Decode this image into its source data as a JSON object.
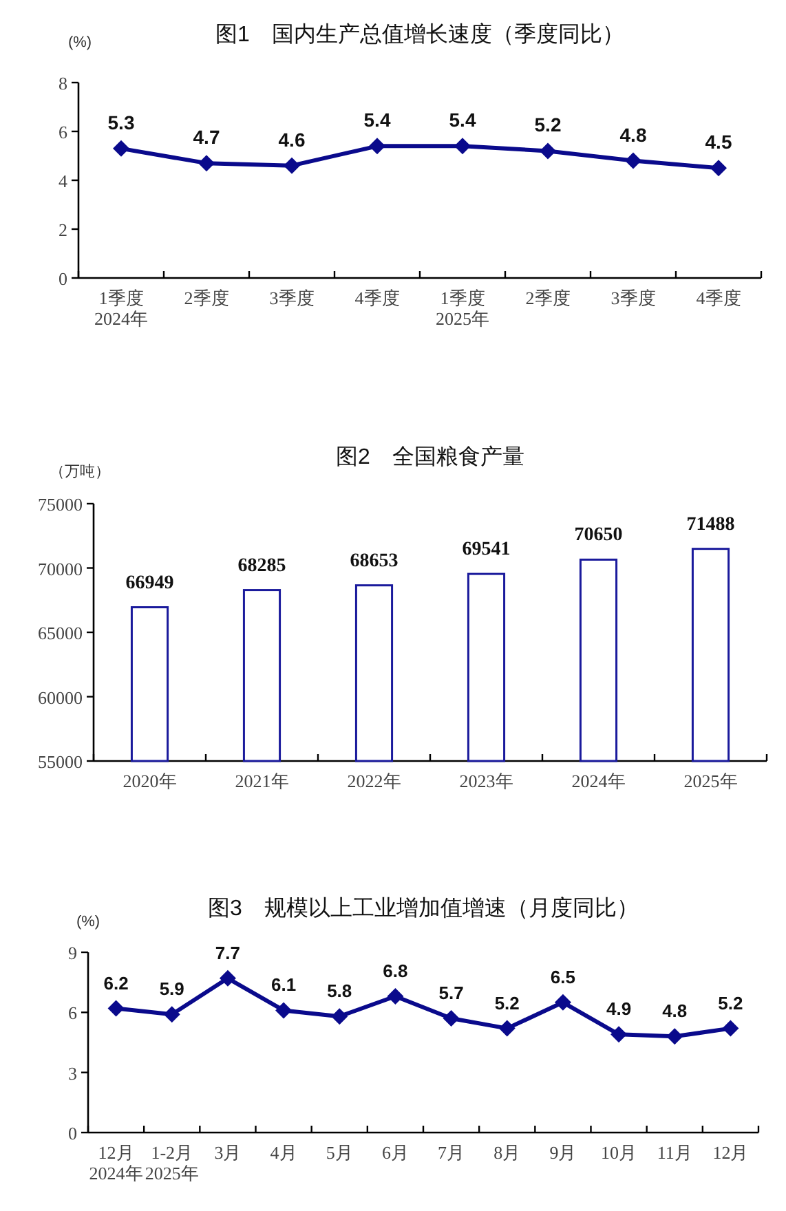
{
  "chart_data": [
    {
      "type": "line",
      "title": "图1　国内生产总值增长速度（季度同比）",
      "ylabel": "(%)",
      "categories": [
        "1季度\n2024年",
        "2季度",
        "3季度",
        "4季度",
        "1季度\n2025年",
        "2季度",
        "3季度",
        "4季度"
      ],
      "series": [
        {
          "color": "#0a0a8c",
          "values": [
            5.3,
            4.7,
            4.6,
            5.4,
            5.4,
            5.2,
            4.8,
            4.5
          ]
        }
      ],
      "ylim": [
        0,
        8
      ],
      "yticks": [
        0,
        2,
        4,
        6,
        8
      ],
      "marker": "diamond",
      "line_style": "solid",
      "data_labels": true
    },
    {
      "type": "bar",
      "title": "图2　全国粮食产量",
      "ylabel": "（万吨）",
      "categories": [
        "2020年",
        "2021年",
        "2022年",
        "2023年",
        "2024年",
        "2025年"
      ],
      "series": [
        {
          "color": "#1a1a9c",
          "values": [
            66949,
            68285,
            68653,
            69541,
            70650,
            71488
          ]
        }
      ],
      "ylim": [
        55000,
        75000
      ],
      "yticks": [
        55000,
        60000,
        65000,
        70000,
        75000
      ],
      "data_labels": true
    },
    {
      "type": "line",
      "title": "图3　规模以上工业增加值增速（月度同比）",
      "ylabel": "(%)",
      "categories": [
        "12月\n2024年",
        "1-2月\n2025年",
        "3月",
        "4月",
        "5月",
        "6月",
        "7月",
        "8月",
        "9月",
        "10月",
        "11月",
        "12月"
      ],
      "series": [
        {
          "color": "#0a0a8c",
          "values": [
            6.2,
            5.9,
            7.7,
            6.1,
            5.8,
            6.8,
            5.7,
            5.2,
            6.5,
            4.9,
            4.8,
            5.2
          ]
        }
      ],
      "ylim": [
        0,
        9
      ],
      "yticks": [
        0,
        3,
        6,
        9
      ],
      "marker": "diamond",
      "line_style": "solid",
      "data_labels": true
    }
  ]
}
